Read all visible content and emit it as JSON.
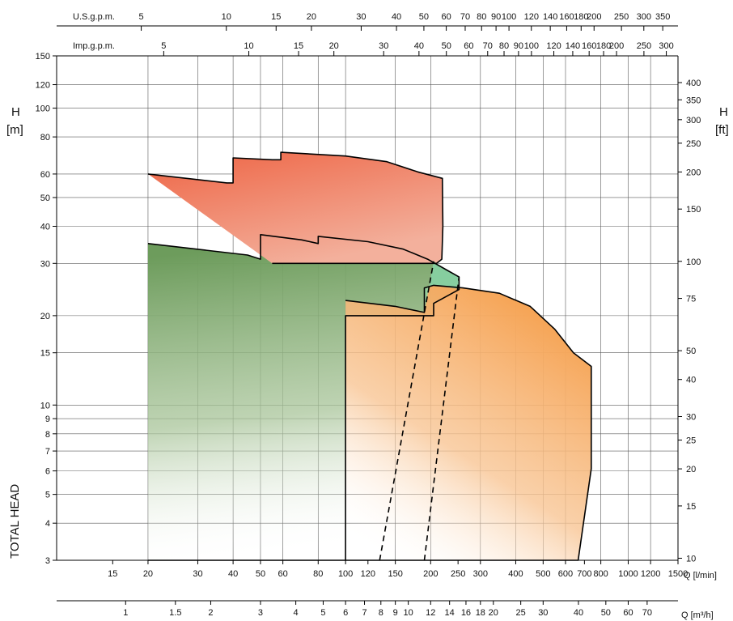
{
  "chart_data": {
    "type": "area",
    "title": "",
    "x_scale": "log",
    "y_scale": "log",
    "grid": true,
    "legend": "none",
    "ylabel": "TOTAL HEAD",
    "y_left_unit": "H",
    "y_left_unit_bracket": "[m]",
    "y_right_unit": "H",
    "y_right_unit_bracket": "[ft]",
    "x_main_label": "Q [l/min]",
    "x_m3h_label": "Q [m³/h]",
    "usgpm_label": "U.S.g.p.m.",
    "impgpm_label": "Imp.g.p.m.",
    "xlim_lmin": [
      9.5,
      1500
    ],
    "ylim_m": [
      3,
      150
    ],
    "x_ticks_lmin": [
      15,
      20,
      30,
      40,
      50,
      60,
      80,
      100,
      120,
      150,
      200,
      250,
      300,
      400,
      500,
      600,
      700,
      800,
      1000,
      1200,
      1500
    ],
    "x_gridlines_lmin": [
      20,
      30,
      40,
      50,
      60,
      80,
      100,
      150,
      200,
      300,
      400,
      500,
      600,
      800,
      1000,
      1200,
      1500
    ],
    "y_ticks_m": [
      3,
      4,
      5,
      6,
      7,
      8,
      9,
      10,
      15,
      20,
      30,
      40,
      50,
      60,
      80,
      100,
      120,
      150
    ],
    "y_ticks_ft": [
      10,
      15,
      20,
      25,
      30,
      40,
      50,
      75,
      100,
      150,
      200,
      250,
      300,
      350,
      400
    ],
    "m3h_ticks": [
      "1",
      "1.5",
      "2",
      "3",
      "4",
      "5",
      "6",
      "7",
      "8",
      "9",
      "10",
      "12",
      "14",
      "16",
      "18",
      "20",
      "25",
      "30",
      "40",
      "50",
      "60",
      "70"
    ],
    "usgpm_ticks": [
      "5",
      "10",
      "15",
      "20",
      "30",
      "40",
      "50",
      "60",
      "70",
      "80",
      "90",
      "100",
      "120",
      "140",
      "160",
      "180",
      "200",
      "250",
      "300",
      "350"
    ],
    "impgpm_ticks": [
      "5",
      "10",
      "15",
      "20",
      "30",
      "40",
      "50",
      "60",
      "70",
      "80",
      "90",
      "100",
      "120",
      "140",
      "160",
      "180",
      "200",
      "250",
      "300"
    ],
    "colors": {
      "red_family": "#ef7155",
      "green_family": "#7aa469",
      "green_mint": "#86d3a6",
      "orange_family": "#f7ac64"
    },
    "series": [
      {
        "fill": "red",
        "boundary": [
          [
            20,
            60
          ],
          [
            38,
            56
          ],
          [
            40,
            56
          ],
          [
            40,
            68
          ],
          [
            55,
            67
          ],
          [
            59,
            67
          ],
          [
            59,
            71
          ],
          [
            100,
            69
          ],
          [
            140,
            66
          ],
          [
            180,
            61
          ],
          [
            220,
            58
          ],
          [
            221,
            40
          ],
          [
            219,
            31
          ],
          [
            210,
            30
          ],
          [
            55,
            30
          ]
        ]
      },
      {
        "fill": "green",
        "boundary": [
          [
            20,
            35
          ],
          [
            45,
            32
          ],
          [
            50,
            31
          ],
          [
            50,
            37.5
          ],
          [
            70,
            36
          ],
          [
            80,
            35
          ],
          [
            80,
            37
          ],
          [
            120,
            35.5
          ],
          [
            160,
            33.5
          ],
          [
            195,
            31
          ],
          [
            228,
            28.5
          ],
          [
            252,
            27
          ],
          [
            252,
            24.5
          ],
          [
            205,
            22
          ],
          [
            205,
            20
          ],
          [
            100,
            20
          ],
          [
            100,
            3
          ],
          [
            20,
            3
          ]
        ]
      },
      {
        "fill": "orange",
        "boundary": [
          [
            100,
            22.5
          ],
          [
            150,
            21.5
          ],
          [
            190,
            20.5
          ],
          [
            190,
            24.8
          ],
          [
            205,
            25.3
          ],
          [
            260,
            24.8
          ],
          [
            350,
            23.8
          ],
          [
            450,
            21.5
          ],
          [
            550,
            18
          ],
          [
            640,
            15
          ],
          [
            740,
            13.5
          ],
          [
            740,
            6.1
          ],
          [
            665,
            3
          ],
          [
            100,
            3
          ]
        ]
      }
    ],
    "dashed_limit_lines": [
      {
        "from": [
          132,
          3
        ],
        "to": [
          205,
          30.5
        ]
      },
      {
        "from": [
          190,
          3
        ],
        "to": [
          252,
          27
        ]
      }
    ]
  }
}
